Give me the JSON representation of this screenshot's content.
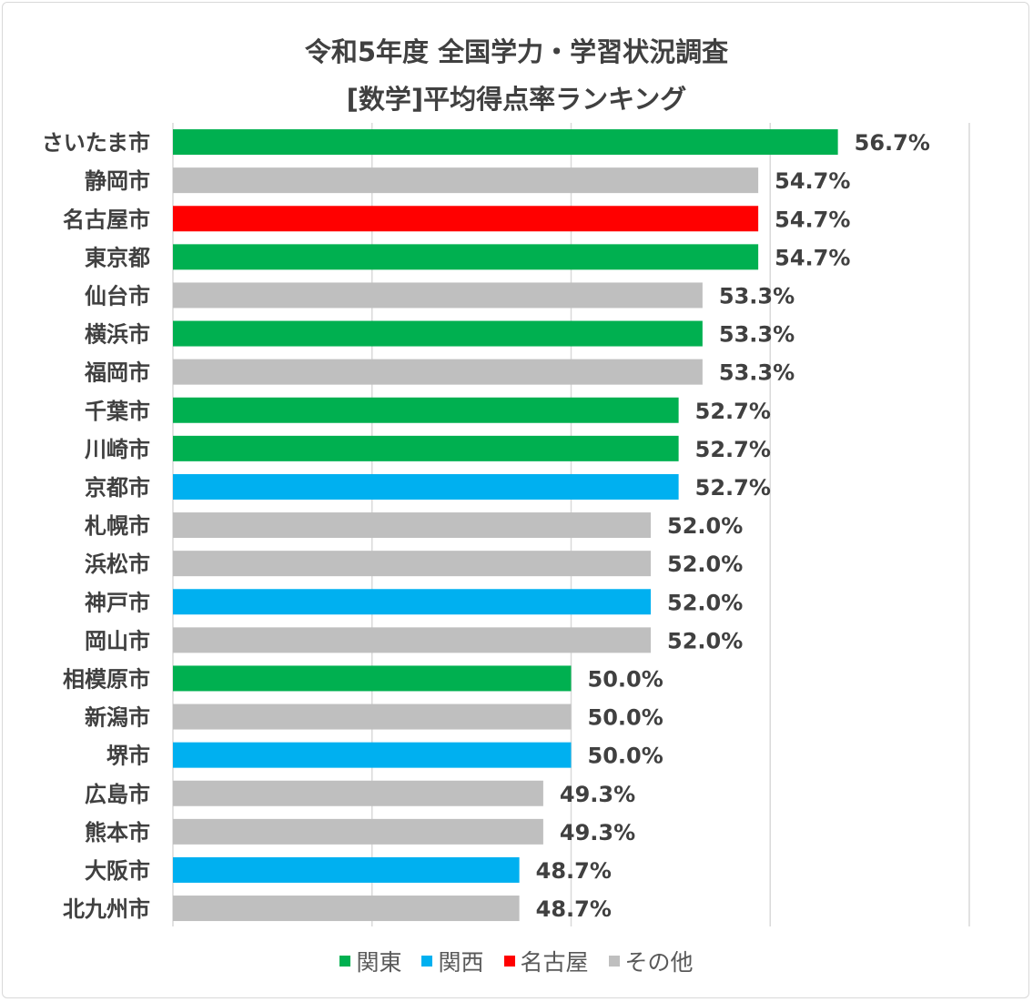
{
  "chart_data": {
    "type": "bar",
    "orientation": "horizontal",
    "title": "令和5年度 全国学力・学習状況調査",
    "subtitle": "[数学]平均得点率ランキング",
    "categories": [
      "さいたま市",
      "静岡市",
      "名古屋市",
      "東京都",
      "仙台市",
      "横浜市",
      "福岡市",
      "千葉市",
      "川崎市",
      "京都市",
      "札幌市",
      "浜松市",
      "神戸市",
      "岡山市",
      "相模原市",
      "新潟市",
      "堺市",
      "広島市",
      "熊本市",
      "大阪市",
      "北九州市"
    ],
    "values": [
      56.7,
      54.7,
      54.7,
      54.7,
      53.3,
      53.3,
      53.3,
      52.7,
      52.7,
      52.7,
      52.0,
      52.0,
      52.0,
      52.0,
      50.0,
      50.0,
      50.0,
      49.3,
      49.3,
      48.7,
      48.7
    ],
    "value_labels": [
      "56.7%",
      "54.7%",
      "54.7%",
      "54.7%",
      "53.3%",
      "53.3%",
      "53.3%",
      "52.7%",
      "52.7%",
      "52.7%",
      "52.0%",
      "52.0%",
      "52.0%",
      "52.0%",
      "50.0%",
      "50.0%",
      "50.0%",
      "49.3%",
      "49.3%",
      "48.7%",
      "48.7%"
    ],
    "groups": [
      "関東",
      "その他",
      "名古屋",
      "関東",
      "その他",
      "関東",
      "その他",
      "関東",
      "関東",
      "関西",
      "その他",
      "その他",
      "関西",
      "その他",
      "関東",
      "その他",
      "関西",
      "その他",
      "その他",
      "関西",
      "その他"
    ],
    "xlim": [
      40,
      60
    ],
    "grid": true,
    "legend_position": "bottom",
    "legend": [
      {
        "name": "関東",
        "color": "#00b050"
      },
      {
        "name": "関西",
        "color": "#00b0f0"
      },
      {
        "name": "名古屋",
        "color": "#ff0000"
      },
      {
        "name": "その他",
        "color": "#bfbfbf"
      }
    ]
  }
}
